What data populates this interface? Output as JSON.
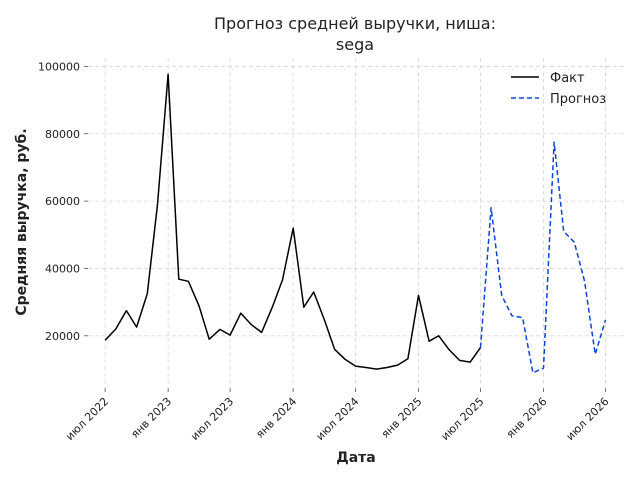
{
  "chart_data": {
    "type": "line",
    "title_line1": "Прогноз средней выручки, ниша:",
    "title_line2": "sega",
    "xlabel": "Дата",
    "ylabel": "Средняя выручка, руб.",
    "x_ticks": [
      {
        "date": "2022-07-01",
        "label": "июл 2022"
      },
      {
        "date": "2023-01-01",
        "label": "янв 2023"
      },
      {
        "date": "2023-07-01",
        "label": "июл 2023"
      },
      {
        "date": "2024-01-01",
        "label": "янв 2024"
      },
      {
        "date": "2024-07-01",
        "label": "июл 2024"
      },
      {
        "date": "2025-01-01",
        "label": "янв 2025"
      },
      {
        "date": "2025-07-01",
        "label": "июл 2025"
      },
      {
        "date": "2026-01-01",
        "label": "янв 2026"
      },
      {
        "date": "2026-07-01",
        "label": "июл 2026"
      }
    ],
    "y_ticks": [
      20000,
      40000,
      60000,
      80000,
      100000
    ],
    "y_tick_labels": [
      "20000",
      "40000",
      "60000",
      "80000",
      "100000"
    ],
    "xlim": [
      "2022-05-12",
      "2026-08-24"
    ],
    "ylim": [
      4500,
      102500
    ],
    "grid": true,
    "legend_position": "top-right",
    "series": [
      {
        "name": "Факт",
        "color": "#000000",
        "style": "solid",
        "points": [
          [
            "2022-07-01",
            18700
          ],
          [
            "2022-08-01",
            22000
          ],
          [
            "2022-09-01",
            27500
          ],
          [
            "2022-10-01",
            22600
          ],
          [
            "2022-11-01",
            32500
          ],
          [
            "2022-12-01",
            59000
          ],
          [
            "2023-01-01",
            97700
          ],
          [
            "2023-02-01",
            36800
          ],
          [
            "2023-03-01",
            36200
          ],
          [
            "2023-04-01",
            28900
          ],
          [
            "2023-05-01",
            19000
          ],
          [
            "2023-06-01",
            21900
          ],
          [
            "2023-07-01",
            20200
          ],
          [
            "2023-08-01",
            26700
          ],
          [
            "2023-09-01",
            23300
          ],
          [
            "2023-10-01",
            21000
          ],
          [
            "2023-11-01",
            28500
          ],
          [
            "2023-12-01",
            36600
          ],
          [
            "2024-01-01",
            52000
          ],
          [
            "2024-02-01",
            28500
          ],
          [
            "2024-03-01",
            33000
          ],
          [
            "2024-04-01",
            24800
          ],
          [
            "2024-05-01",
            16000
          ],
          [
            "2024-06-01",
            13000
          ],
          [
            "2024-07-01",
            11000
          ],
          [
            "2024-08-01",
            10600
          ],
          [
            "2024-09-01",
            10100
          ],
          [
            "2024-10-01",
            10600
          ],
          [
            "2024-11-01",
            11300
          ],
          [
            "2024-12-01",
            13200
          ],
          [
            "2025-01-01",
            32000
          ],
          [
            "2025-02-01",
            18400
          ],
          [
            "2025-03-01",
            20000
          ],
          [
            "2025-04-01",
            15800
          ],
          [
            "2025-05-01",
            12700
          ],
          [
            "2025-06-01",
            12200
          ],
          [
            "2025-07-01",
            16500
          ]
        ]
      },
      {
        "name": "Прогноз",
        "color": "#0b45d6",
        "style": "dashed",
        "points": [
          [
            "2025-07-01",
            16500
          ],
          [
            "2025-08-01",
            58000
          ],
          [
            "2025-09-01",
            32000
          ],
          [
            "2025-10-01",
            25900
          ],
          [
            "2025-11-01",
            25400
          ],
          [
            "2025-12-01",
            9000
          ],
          [
            "2026-01-01",
            10400
          ],
          [
            "2026-02-01",
            77500
          ],
          [
            "2026-03-01",
            51000
          ],
          [
            "2026-04-01",
            47800
          ],
          [
            "2026-05-01",
            36200
          ],
          [
            "2026-06-01",
            14500
          ],
          [
            "2026-07-01",
            24700
          ]
        ]
      }
    ]
  }
}
